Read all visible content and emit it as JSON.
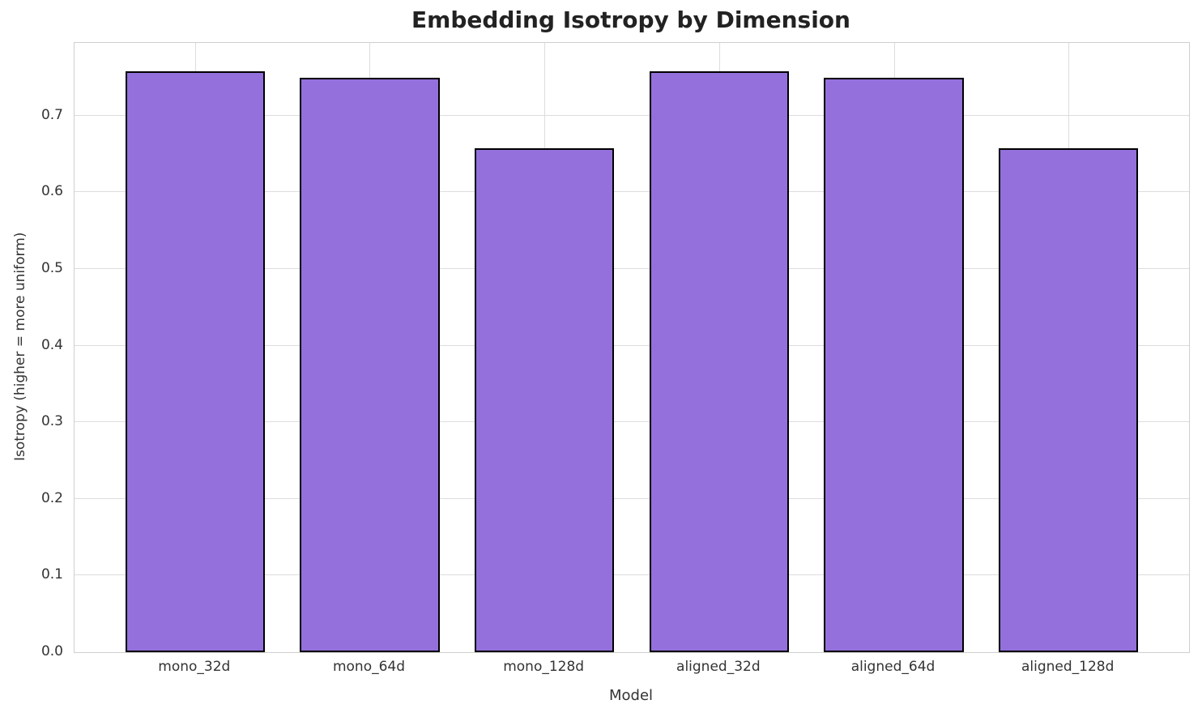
{
  "chart_data": {
    "type": "bar",
    "title": "Embedding Isotropy by Dimension",
    "xlabel": "Model",
    "ylabel": "Isotropy (higher = more uniform)",
    "categories": [
      "mono_32d",
      "mono_64d",
      "mono_128d",
      "aligned_32d",
      "aligned_64d",
      "aligned_128d"
    ],
    "values": [
      0.758,
      0.75,
      0.658,
      0.758,
      0.75,
      0.658
    ],
    "ylim": [
      0,
      0.795
    ],
    "yticks": [
      0.0,
      0.1,
      0.2,
      0.3,
      0.4,
      0.5,
      0.6,
      0.7
    ],
    "ytick_labels": [
      "0.0",
      "0.1",
      "0.2",
      "0.3",
      "0.4",
      "0.5",
      "0.6",
      "0.7"
    ],
    "xlim": [
      -0.69,
      5.69
    ],
    "bar_width": 0.8,
    "grid": true,
    "legend": "none",
    "colors": {
      "bar_fill": "#9370DB",
      "bar_edge": "#000000",
      "grid": "#dddddd",
      "spine": "#cfcfcf",
      "title": "#222222",
      "tick": "#333333"
    }
  }
}
